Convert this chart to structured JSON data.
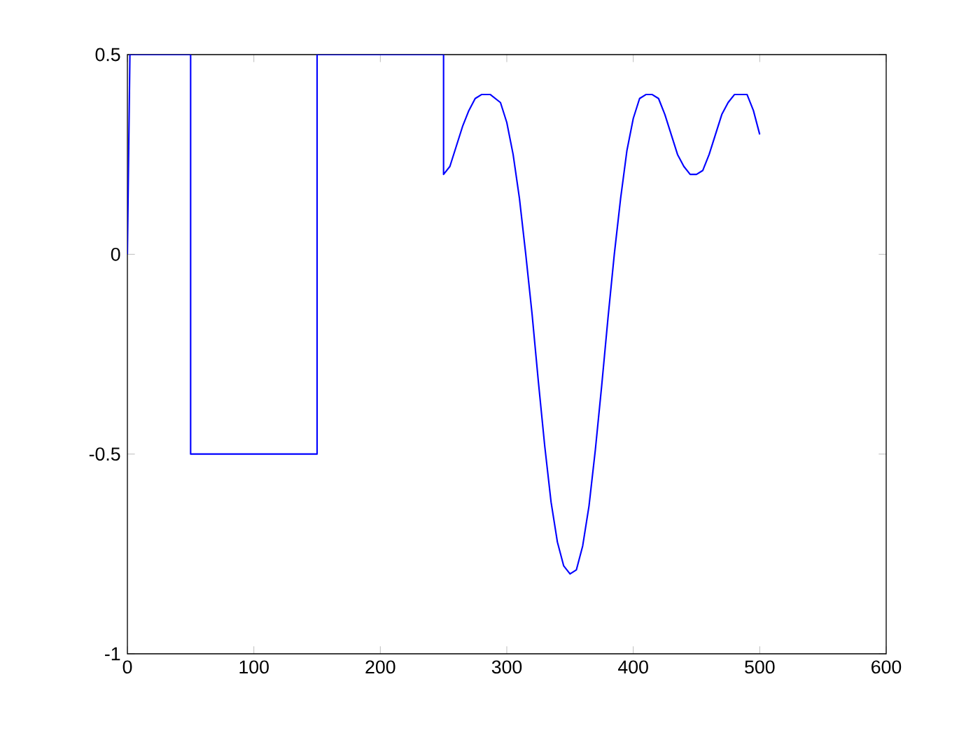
{
  "chart_data": {
    "type": "line",
    "color": "#0000ff",
    "x": [
      0,
      2,
      50,
      50,
      150,
      150,
      250,
      250,
      255,
      260,
      265,
      270,
      275,
      280,
      287,
      295,
      300,
      305,
      310,
      315,
      320,
      325,
      330,
      335,
      340,
      345,
      350,
      355,
      360,
      365,
      370,
      375,
      380,
      385,
      390,
      395,
      400,
      405,
      410,
      415,
      420,
      425,
      430,
      435,
      440,
      445,
      450,
      455,
      460,
      465,
      470,
      475,
      480,
      487,
      490,
      495,
      500
    ],
    "values": [
      0,
      0.5,
      0.5,
      -0.5,
      -0.5,
      0.5,
      0.5,
      0.2,
      0.22,
      0.27,
      0.32,
      0.36,
      0.39,
      0.4,
      0.4,
      0.38,
      0.33,
      0.25,
      0.14,
      0.0,
      -0.15,
      -0.32,
      -0.48,
      -0.62,
      -0.72,
      -0.78,
      -0.8,
      -0.79,
      -0.73,
      -0.63,
      -0.49,
      -0.33,
      -0.16,
      0.0,
      0.14,
      0.26,
      0.34,
      0.39,
      0.4,
      0.4,
      0.39,
      0.35,
      0.3,
      0.25,
      0.22,
      0.2,
      0.2,
      0.21,
      0.25,
      0.3,
      0.35,
      0.38,
      0.4,
      0.4,
      0.4,
      0.36,
      0.3
    ],
    "xlim": [
      0,
      600
    ],
    "ylim": [
      -1,
      0.5
    ],
    "xticks": [
      0,
      100,
      200,
      300,
      400,
      500,
      600
    ],
    "yticks": [
      -1,
      -0.5,
      0,
      0.5
    ],
    "grid": false
  }
}
